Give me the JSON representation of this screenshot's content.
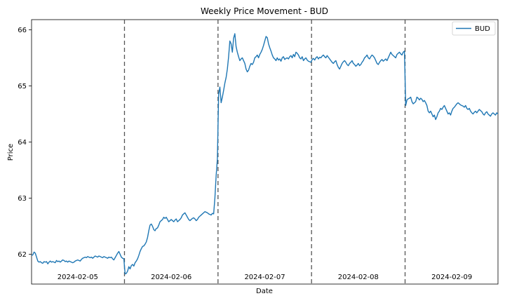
{
  "chart_data": {
    "type": "line",
    "title": "Weekly Price Movement - BUD",
    "xlabel": "Date",
    "ylabel": "Price",
    "ylim": [
      61.47,
      66.18
    ],
    "y_ticks": [
      62,
      63,
      64,
      65,
      66
    ],
    "grid": false,
    "legend_position": "top-right",
    "day_labels": [
      "2024-02-05",
      "2024-02-06",
      "2024-02-07",
      "2024-02-08",
      "2024-02-09"
    ],
    "day_separators": "dashed vertical lines between trading days",
    "series": [
      {
        "name": "BUD",
        "color": "#1f77b4",
        "points_per_day": 75,
        "values": [
          61.98,
          61.99,
          62.04,
          62.02,
          61.95,
          61.88,
          61.86,
          61.87,
          61.85,
          61.84,
          61.87,
          61.86,
          61.87,
          61.83,
          61.86,
          61.88,
          61.86,
          61.87,
          61.86,
          61.85,
          61.89,
          61.87,
          61.88,
          61.86,
          61.88,
          61.9,
          61.89,
          61.87,
          61.88,
          61.86,
          61.88,
          61.87,
          61.86,
          61.85,
          61.86,
          61.88,
          61.89,
          61.9,
          61.89,
          61.88,
          61.91,
          61.93,
          61.94,
          61.95,
          61.94,
          61.96,
          61.95,
          61.94,
          61.95,
          61.93,
          61.95,
          61.97,
          61.96,
          61.95,
          61.97,
          61.96,
          61.95,
          61.94,
          61.96,
          61.95,
          61.94,
          61.93,
          61.95,
          61.94,
          61.95,
          61.92,
          61.9,
          61.94,
          61.98,
          62.02,
          62.05,
          62.0,
          61.95,
          61.93,
          61.92,
          61.65,
          61.66,
          61.7,
          61.78,
          61.74,
          61.8,
          61.82,
          61.79,
          61.85,
          61.88,
          61.92,
          61.98,
          62.05,
          62.1,
          62.14,
          62.15,
          62.18,
          62.22,
          62.3,
          62.42,
          62.52,
          62.54,
          62.5,
          62.44,
          62.42,
          62.46,
          62.47,
          62.52,
          62.58,
          62.6,
          62.62,
          62.66,
          62.64,
          62.66,
          62.62,
          62.58,
          62.6,
          62.62,
          62.6,
          62.58,
          62.61,
          62.63,
          62.58,
          62.6,
          62.62,
          62.65,
          62.7,
          62.72,
          62.74,
          62.7,
          62.66,
          62.62,
          62.6,
          62.62,
          62.64,
          62.65,
          62.63,
          62.6,
          62.62,
          62.66,
          62.68,
          62.7,
          62.72,
          62.74,
          62.76,
          62.75,
          62.74,
          62.72,
          62.71,
          62.7,
          62.73,
          62.72,
          63.0,
          63.4,
          63.7,
          64.85,
          64.98,
          64.7,
          64.8,
          64.92,
          65.05,
          65.15,
          65.3,
          65.52,
          65.8,
          65.75,
          65.6,
          65.85,
          65.93,
          65.7,
          65.6,
          65.52,
          65.45,
          65.48,
          65.5,
          65.45,
          65.4,
          65.3,
          65.25,
          65.28,
          65.35,
          65.4,
          65.38,
          65.42,
          65.5,
          65.52,
          65.55,
          65.5,
          65.56,
          65.6,
          65.65,
          65.72,
          65.8,
          65.88,
          65.86,
          65.75,
          65.68,
          65.62,
          65.55,
          65.5,
          65.48,
          65.45,
          65.5,
          65.46,
          65.48,
          65.44,
          65.5,
          65.52,
          65.47,
          65.49,
          65.5,
          65.48,
          65.52,
          65.54,
          65.5,
          65.56,
          65.52,
          65.6,
          65.58,
          65.55,
          65.5,
          65.48,
          65.52,
          65.45,
          65.48,
          65.5,
          65.46,
          65.44,
          65.43,
          65.42,
          65.47,
          65.49,
          65.46,
          65.5,
          65.52,
          65.48,
          65.51,
          65.5,
          65.53,
          65.55,
          65.52,
          65.5,
          65.54,
          65.51,
          65.48,
          65.45,
          65.42,
          65.4,
          65.43,
          65.45,
          65.38,
          65.33,
          65.3,
          65.35,
          65.4,
          65.43,
          65.45,
          65.42,
          65.38,
          65.36,
          65.4,
          65.42,
          65.45,
          65.4,
          65.38,
          65.35,
          65.37,
          65.4,
          65.36,
          65.38,
          65.42,
          65.45,
          65.5,
          65.52,
          65.55,
          65.5,
          65.48,
          65.52,
          65.55,
          65.53,
          65.5,
          65.45,
          65.4,
          65.38,
          65.42,
          65.45,
          65.47,
          65.44,
          65.46,
          65.48,
          65.45,
          65.5,
          65.55,
          65.6,
          65.56,
          65.54,
          65.52,
          65.5,
          65.56,
          65.58,
          65.6,
          65.57,
          65.55,
          65.6,
          65.62,
          64.65,
          64.75,
          64.77,
          64.78,
          64.8,
          64.72,
          64.68,
          64.7,
          64.72,
          64.8,
          64.78,
          64.75,
          64.78,
          64.76,
          64.72,
          64.74,
          64.7,
          64.65,
          64.55,
          64.52,
          64.55,
          64.5,
          64.45,
          64.48,
          64.4,
          64.45,
          64.52,
          64.55,
          64.6,
          64.58,
          64.62,
          64.65,
          64.6,
          64.55,
          64.5,
          64.52,
          64.48,
          64.55,
          64.6,
          64.62,
          64.65,
          64.68,
          64.7,
          64.68,
          64.66,
          64.65,
          64.64,
          64.62,
          64.65,
          64.6,
          64.58,
          64.6,
          64.55,
          64.52,
          64.5,
          64.53,
          64.55,
          64.52,
          64.55,
          64.58,
          64.56,
          64.54,
          64.5,
          64.48,
          64.52,
          64.54,
          64.5,
          64.48,
          64.46,
          64.5,
          64.52,
          64.5,
          64.48,
          64.52,
          64.5
        ]
      }
    ]
  }
}
